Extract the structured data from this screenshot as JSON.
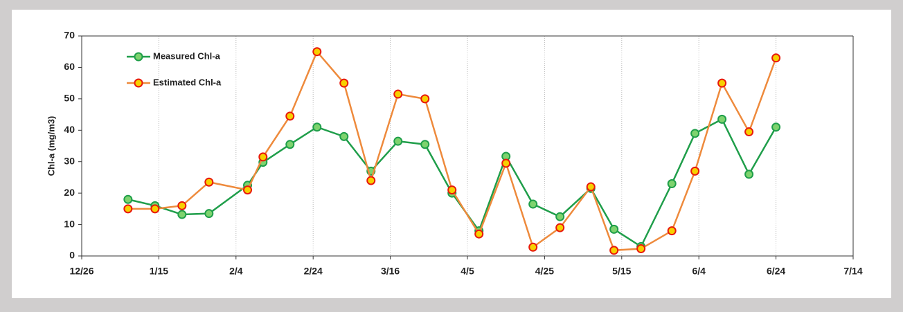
{
  "chart_data": {
    "type": "line",
    "y_label": "Chl-a (mg/m3)",
    "x": [
      "1/7",
      "1/14",
      "1/21",
      "1/28",
      "2/7",
      "2/11",
      "2/18",
      "2/25",
      "3/4",
      "3/11",
      "3/18",
      "3/25",
      "4/1",
      "4/8",
      "4/15",
      "4/22",
      "4/29",
      "5/7",
      "5/13",
      "5/20",
      "5/28",
      "6/3",
      "6/10",
      "6/17",
      "6/24"
    ],
    "series": [
      {
        "name": "Measured Chl-a",
        "color": "#1f9e4a",
        "marker_fill": "#7ed36e",
        "values": [
          18,
          16,
          13.2,
          13.5,
          22.5,
          29.8,
          35.5,
          41,
          38,
          27,
          36.5,
          35.5,
          20,
          8,
          31.7,
          16.5,
          12.5,
          21.5,
          8.5,
          3,
          23,
          39,
          43.5,
          26,
          41
        ]
      },
      {
        "name": "Estimated Chl-a",
        "color": "#ee8a3c",
        "marker_fill": "#f7d000",
        "marker_edge": "#e8180c",
        "values": [
          15,
          15,
          16,
          23.5,
          21,
          31.5,
          44.5,
          65,
          55,
          24,
          51.5,
          50,
          21,
          7,
          29.5,
          2.8,
          9,
          22,
          1.8,
          2.3,
          8,
          27,
          55,
          39.5,
          63
        ]
      }
    ],
    "xlim": [
      "12/26",
      "7/14"
    ],
    "xticks": [
      "12/26",
      "1/15",
      "2/4",
      "2/24",
      "3/16",
      "4/5",
      "4/25",
      "5/15",
      "6/4",
      "6/24",
      "7/14"
    ],
    "ylim": [
      0,
      70
    ],
    "yticks": [
      0,
      10,
      20,
      30,
      40,
      50,
      60,
      70
    ],
    "grid": "x",
    "legend": "upper left"
  }
}
